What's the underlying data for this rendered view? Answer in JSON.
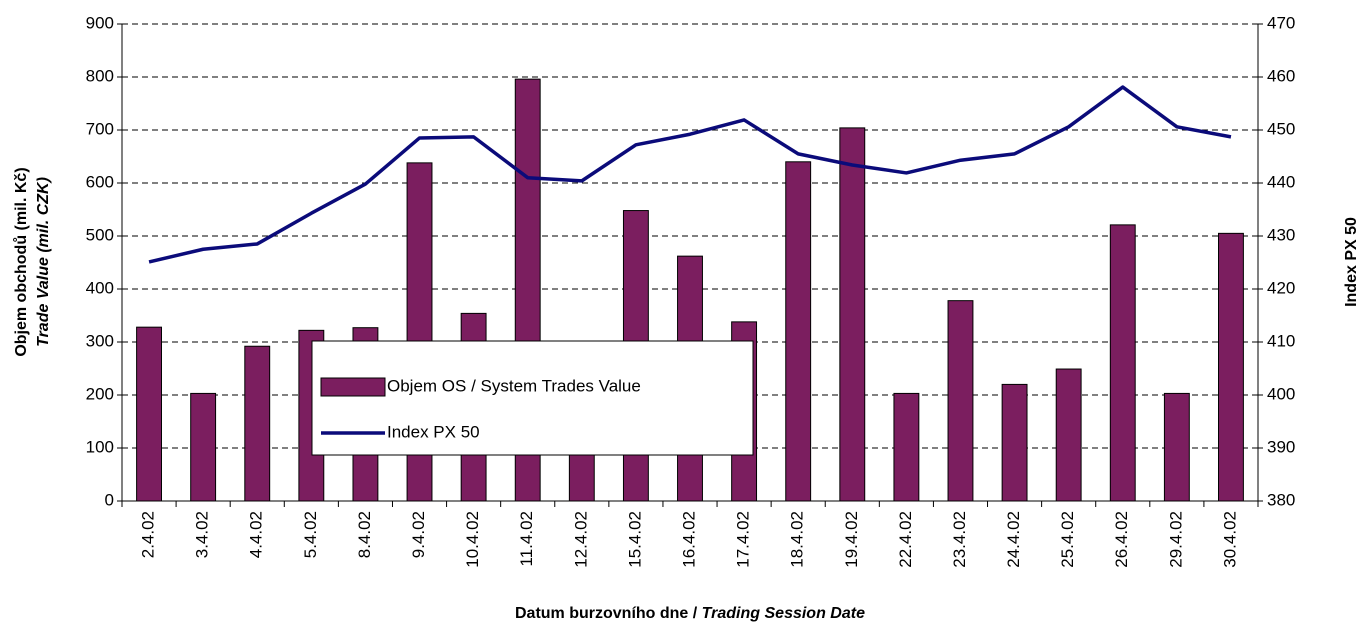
{
  "chart_data": {
    "type": "bar-line",
    "y_label": "Objem obchodů (mil. Kč)",
    "y_label_en": "Trade Value (mil. CZK)",
    "y2_label": "Index PX 50",
    "x_label": "Datum burzovního dne / ",
    "x_label_en": "Trading Session Date",
    "categories": [
      "2.4.02",
      "3.4.02",
      "4.4.02",
      "5.4.02",
      "8.4.02",
      "9.4.02",
      "10.4.02",
      "11.4.02",
      "12.4.02",
      "15.4.02",
      "16.4.02",
      "17.4.02",
      "18.4.02",
      "19.4.02",
      "22.4.02",
      "23.4.02",
      "24.4.02",
      "25.4.02",
      "26.4.02",
      "29.4.02",
      "30.4.02"
    ],
    "series": [
      {
        "name": "Objem OS / System Trades Value",
        "type": "bar",
        "color": "#7b1e5f",
        "values": [
          328,
          203,
          292,
          322,
          327,
          638,
          354,
          796,
          282,
          548,
          462,
          338,
          640,
          704,
          203,
          378,
          220,
          249,
          521,
          203,
          505
        ]
      },
      {
        "name": "Index PX 50",
        "type": "line",
        "axis": "y2",
        "color": "#0b0b7a",
        "values": [
          425.1,
          427.5,
          428.5,
          434.3,
          439.8,
          448.5,
          448.7,
          441.0,
          440.4,
          447.2,
          449.2,
          451.9,
          445.5,
          443.4,
          441.9,
          444.3,
          445.5,
          450.6,
          458.1,
          450.6,
          448.7
        ]
      }
    ],
    "ylim": [
      0,
      900
    ],
    "yticks": [
      0,
      100,
      200,
      300,
      400,
      500,
      600,
      700,
      800,
      900
    ],
    "y2lim": [
      380,
      470
    ],
    "y2ticks": [
      380,
      390,
      400,
      410,
      420,
      430,
      440,
      450,
      460,
      470
    ],
    "grid": true
  }
}
